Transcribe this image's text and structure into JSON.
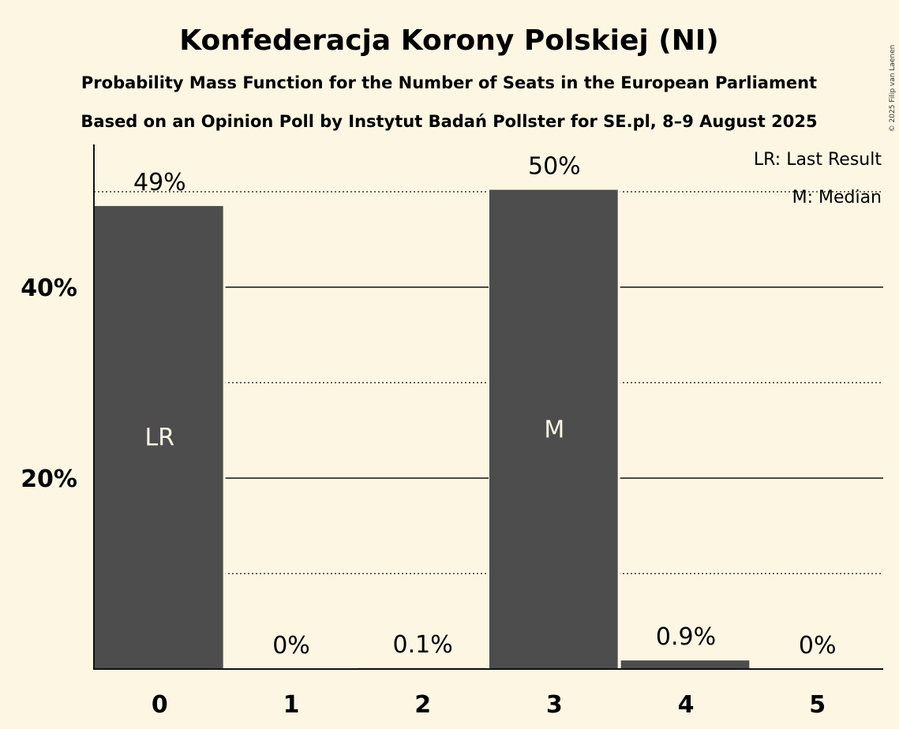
{
  "chart_data": {
    "type": "bar",
    "title": "Konfederacja Korony Polskiej (NI)",
    "subtitle_1": "Probability Mass Function for the Number of Seats in the European Parliament",
    "subtitle_2": "Based on an Opinion Poll by Instytut Badań Pollster for SE.pl, 8–9 August 2025",
    "categories": [
      "0",
      "1",
      "2",
      "3",
      "4",
      "5"
    ],
    "values": [
      48.5,
      0,
      0.1,
      50.2,
      0.9,
      0
    ],
    "value_labels": [
      "49%",
      "0%",
      "0.1%",
      "50%",
      "0.9%",
      "0%"
    ],
    "bar_markers": [
      {
        "category": "0",
        "text": "LR"
      },
      {
        "category": "3",
        "text": "M"
      }
    ],
    "ylim": [
      0,
      55
    ],
    "y_ticks": [
      {
        "value": 20,
        "label": "20%"
      },
      {
        "value": 40,
        "label": "40%"
      }
    ],
    "minor_gridlines": [
      10,
      30,
      50
    ],
    "legend": {
      "placement": "top-right",
      "entries": [
        "LR: Last Result",
        "M: Median"
      ]
    },
    "copyright": "© 2025 Filip van Laenen",
    "colors": {
      "background": "#fdf6e3",
      "bar": "#4d4d4d",
      "text": "#111111",
      "bar_text": "#fdf6e3"
    }
  }
}
